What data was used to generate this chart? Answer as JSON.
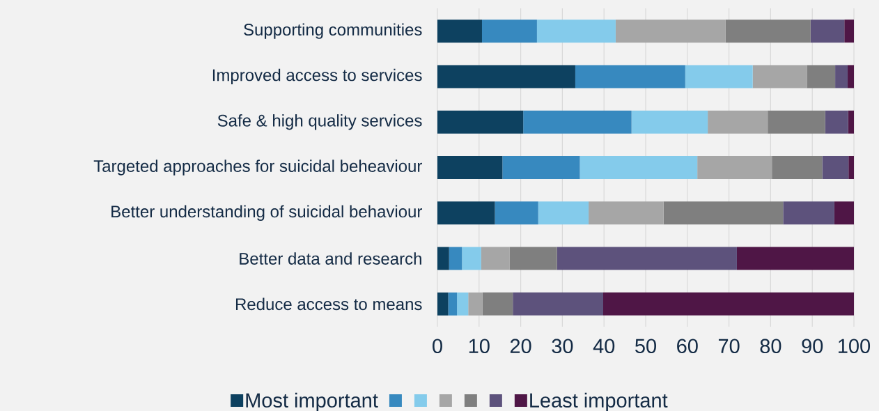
{
  "chart_data": {
    "type": "bar",
    "orientation": "horizontal",
    "stacked": true,
    "categories": [
      "Supporting communities",
      "Improved access to services",
      "Safe & high quality services",
      "Targeted approaches for suicidal beheaviour",
      "Better understanding of suicidal behaviour",
      "Better data and research",
      "Reduce access to means"
    ],
    "series": [
      {
        "name": "Most important",
        "color": "#0d4160",
        "values": [
          10.7,
          33.1,
          20.6,
          15.6,
          13.8,
          2.8,
          2.6
        ]
      },
      {
        "color": "#3789bf",
        "values": [
          13.2,
          26.4,
          26.0,
          18.6,
          10.4,
          3.1,
          2.1
        ]
      },
      {
        "color": "#84cbeb",
        "values": [
          18.9,
          16.2,
          18.3,
          28.2,
          12.1,
          4.6,
          2.7
        ]
      },
      {
        "color": "#a6a6a6",
        "values": [
          26.4,
          13.0,
          14.4,
          17.9,
          18.0,
          6.8,
          3.4
        ]
      },
      {
        "color": "#7f7f7f",
        "values": [
          20.4,
          6.8,
          13.8,
          12.1,
          28.7,
          11.4,
          7.3
        ]
      },
      {
        "color": "#5d527c",
        "values": [
          8.1,
          3.0,
          5.5,
          6.3,
          12.3,
          43.2,
          21.7
        ]
      },
      {
        "name": "Least important",
        "color": "#4f1646",
        "values": [
          2.3,
          1.5,
          1.4,
          1.3,
          4.7,
          28.1,
          60.2
        ]
      }
    ],
    "xlim": [
      0,
      100
    ],
    "xticks": [
      0,
      10,
      20,
      30,
      40,
      50,
      60,
      70,
      80,
      90,
      100
    ],
    "grid": "x",
    "legend": "bottom"
  }
}
